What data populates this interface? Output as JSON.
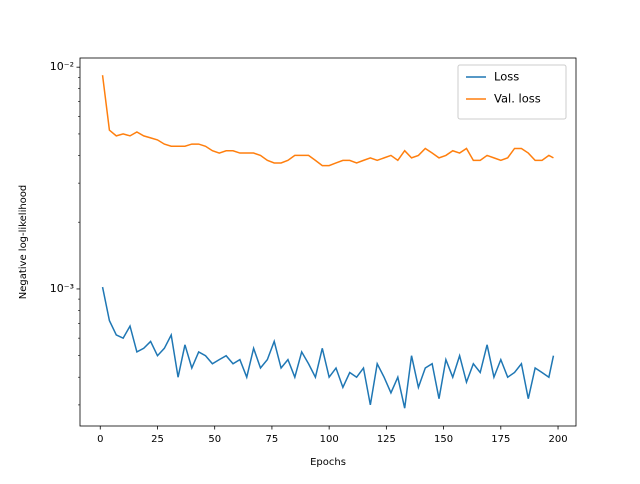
{
  "chart_data": {
    "type": "line",
    "xlabel": "Epochs",
    "ylabel": "Negative log-likelihood",
    "x": [
      1,
      4,
      7,
      10,
      13,
      16,
      19,
      22,
      25,
      28,
      31,
      34,
      37,
      40,
      43,
      46,
      49,
      52,
      55,
      58,
      61,
      64,
      67,
      70,
      73,
      76,
      79,
      82,
      85,
      88,
      91,
      94,
      97,
      100,
      103,
      106,
      109,
      112,
      115,
      118,
      121,
      124,
      127,
      130,
      133,
      136,
      139,
      142,
      145,
      148,
      151,
      154,
      157,
      160,
      163,
      166,
      169,
      172,
      175,
      178,
      181,
      184,
      187,
      190,
      193,
      196,
      198
    ],
    "series": [
      {
        "name": "Loss",
        "color": "#1f77b4",
        "values": [
          0.00102,
          0.00072,
          0.00062,
          0.0006,
          0.00068,
          0.00052,
          0.00054,
          0.00058,
          0.0005,
          0.00054,
          0.00062,
          0.0004,
          0.00056,
          0.00044,
          0.00052,
          0.0005,
          0.00046,
          0.00048,
          0.0005,
          0.00046,
          0.00048,
          0.0004,
          0.00054,
          0.00044,
          0.00048,
          0.00058,
          0.00044,
          0.00048,
          0.0004,
          0.00052,
          0.00046,
          0.0004,
          0.00054,
          0.0004,
          0.00044,
          0.00036,
          0.00042,
          0.0004,
          0.00044,
          0.0003,
          0.00046,
          0.0004,
          0.00034,
          0.0004,
          0.00029,
          0.0005,
          0.00036,
          0.00044,
          0.00046,
          0.00032,
          0.00048,
          0.0004,
          0.0005,
          0.00038,
          0.00046,
          0.00042,
          0.00056,
          0.0004,
          0.00048,
          0.0004,
          0.00042,
          0.00046,
          0.00032,
          0.00044,
          0.00042,
          0.0004,
          0.0005
        ]
      },
      {
        "name": "Val. loss",
        "color": "#ff7f0e",
        "values": [
          0.0092,
          0.0052,
          0.0049,
          0.005,
          0.0049,
          0.0051,
          0.0049,
          0.0048,
          0.0047,
          0.0045,
          0.0044,
          0.0044,
          0.0044,
          0.0045,
          0.0045,
          0.0044,
          0.0042,
          0.0041,
          0.0042,
          0.0042,
          0.0041,
          0.0041,
          0.0041,
          0.004,
          0.0038,
          0.0037,
          0.0037,
          0.0038,
          0.004,
          0.004,
          0.004,
          0.0038,
          0.0036,
          0.0036,
          0.0037,
          0.0038,
          0.0038,
          0.0037,
          0.0038,
          0.0039,
          0.0038,
          0.0039,
          0.004,
          0.0038,
          0.0042,
          0.0039,
          0.004,
          0.0043,
          0.0041,
          0.0039,
          0.004,
          0.0042,
          0.0041,
          0.0043,
          0.0038,
          0.0038,
          0.004,
          0.0039,
          0.0038,
          0.0039,
          0.0043,
          0.0043,
          0.0041,
          0.0038,
          0.0038,
          0.004,
          0.0039
        ]
      }
    ],
    "xlim": [
      -8.85,
      207.85
    ],
    "xticks": [
      0,
      25,
      50,
      75,
      100,
      125,
      150,
      175,
      200
    ],
    "ylim": [
      0.000241,
      0.011
    ],
    "yscale": "log",
    "yticks": [
      {
        "value": 0.001,
        "label": "10⁻³"
      },
      {
        "value": 0.01,
        "label": "10⁻²"
      }
    ],
    "yminorticks": [
      0.0003,
      0.0004,
      0.0005,
      0.0006,
      0.0007,
      0.0008,
      0.0009,
      0.002,
      0.003,
      0.004,
      0.005,
      0.006,
      0.007,
      0.008,
      0.009
    ],
    "legend": "upper right"
  }
}
